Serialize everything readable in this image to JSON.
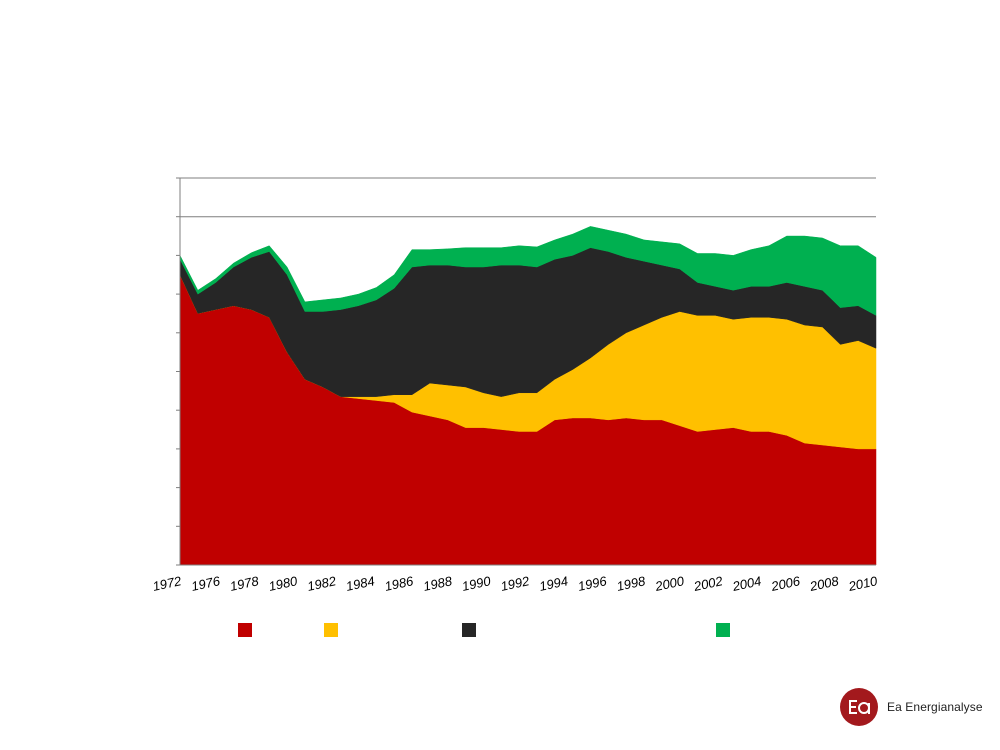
{
  "chart_data": {
    "type": "area",
    "stacked": true,
    "title": "",
    "xlabel": "",
    "ylabel": "",
    "ylim": [
      0,
      10
    ],
    "y_gridlines": [
      9,
      10
    ],
    "x": [
      1972,
      1973,
      1974,
      1975,
      1976,
      1977,
      1978,
      1979,
      1980,
      1981,
      1982,
      1983,
      1984,
      1985,
      1986,
      1987,
      1988,
      1989,
      1990,
      1991,
      1992,
      1993,
      1994,
      1995,
      1996,
      1997,
      1998,
      1999,
      2000,
      2001,
      2002,
      2003,
      2004,
      2005,
      2006,
      2007,
      2008,
      2009,
      2010,
      2011
    ],
    "x_tick_labels": [
      "1972",
      "1976",
      "1978",
      "1980",
      "1982",
      "1984",
      "1986",
      "1988",
      "1990",
      "1992",
      "1994",
      "1996",
      "1998",
      "2000",
      "2002",
      "2004",
      "2006",
      "2008",
      "2010"
    ],
    "series": [
      {
        "name": "",
        "color": "#c00000",
        "values": [
          7.5,
          6.5,
          6.6,
          6.7,
          6.6,
          6.4,
          5.5,
          4.8,
          4.6,
          4.35,
          4.3,
          4.25,
          4.2,
          3.95,
          3.85,
          3.75,
          3.55,
          3.55,
          3.5,
          3.45,
          3.45,
          3.75,
          3.8,
          3.8,
          3.75,
          3.8,
          3.75,
          3.75,
          3.6,
          3.45,
          3.5,
          3.55,
          3.45,
          3.45,
          3.35,
          3.15,
          3.1,
          3.05,
          3.0,
          3.0
        ]
      },
      {
        "name": "",
        "color": "#ffc000",
        "values": [
          0,
          0,
          0,
          0,
          0,
          0,
          0,
          0,
          0,
          0,
          0.05,
          0.1,
          0.2,
          0.45,
          0.85,
          0.9,
          1.05,
          0.9,
          0.85,
          1.0,
          1.0,
          1.05,
          1.25,
          1.55,
          1.95,
          2.2,
          2.45,
          2.65,
          2.95,
          3.0,
          2.95,
          2.8,
          2.95,
          2.95,
          3.0,
          3.05,
          3.05,
          2.65,
          2.8,
          2.6
        ]
      },
      {
        "name": "",
        "color": "#262626",
        "values": [
          0.4,
          0.5,
          0.7,
          1.0,
          1.35,
          1.7,
          2.0,
          1.75,
          1.95,
          2.25,
          2.35,
          2.5,
          2.75,
          3.3,
          3.05,
          3.1,
          3.1,
          3.25,
          3.4,
          3.3,
          3.25,
          3.1,
          2.95,
          2.85,
          2.4,
          1.95,
          1.65,
          1.35,
          1.1,
          0.85,
          0.75,
          0.75,
          0.8,
          0.8,
          0.95,
          1.0,
          0.95,
          0.95,
          0.9,
          0.85
        ]
      },
      {
        "name": "",
        "color": "#00b050",
        "values": [
          0.1,
          0.1,
          0.1,
          0.1,
          0.12,
          0.15,
          0.2,
          0.25,
          0.3,
          0.3,
          0.3,
          0.32,
          0.35,
          0.45,
          0.4,
          0.42,
          0.5,
          0.5,
          0.45,
          0.5,
          0.52,
          0.5,
          0.55,
          0.55,
          0.55,
          0.6,
          0.55,
          0.6,
          0.65,
          0.75,
          0.85,
          0.9,
          0.95,
          1.05,
          1.2,
          1.3,
          1.35,
          1.6,
          1.55,
          1.5
        ]
      }
    ]
  },
  "brand": {
    "name": "Ea Energianalyse",
    "color": "#a3191d"
  }
}
